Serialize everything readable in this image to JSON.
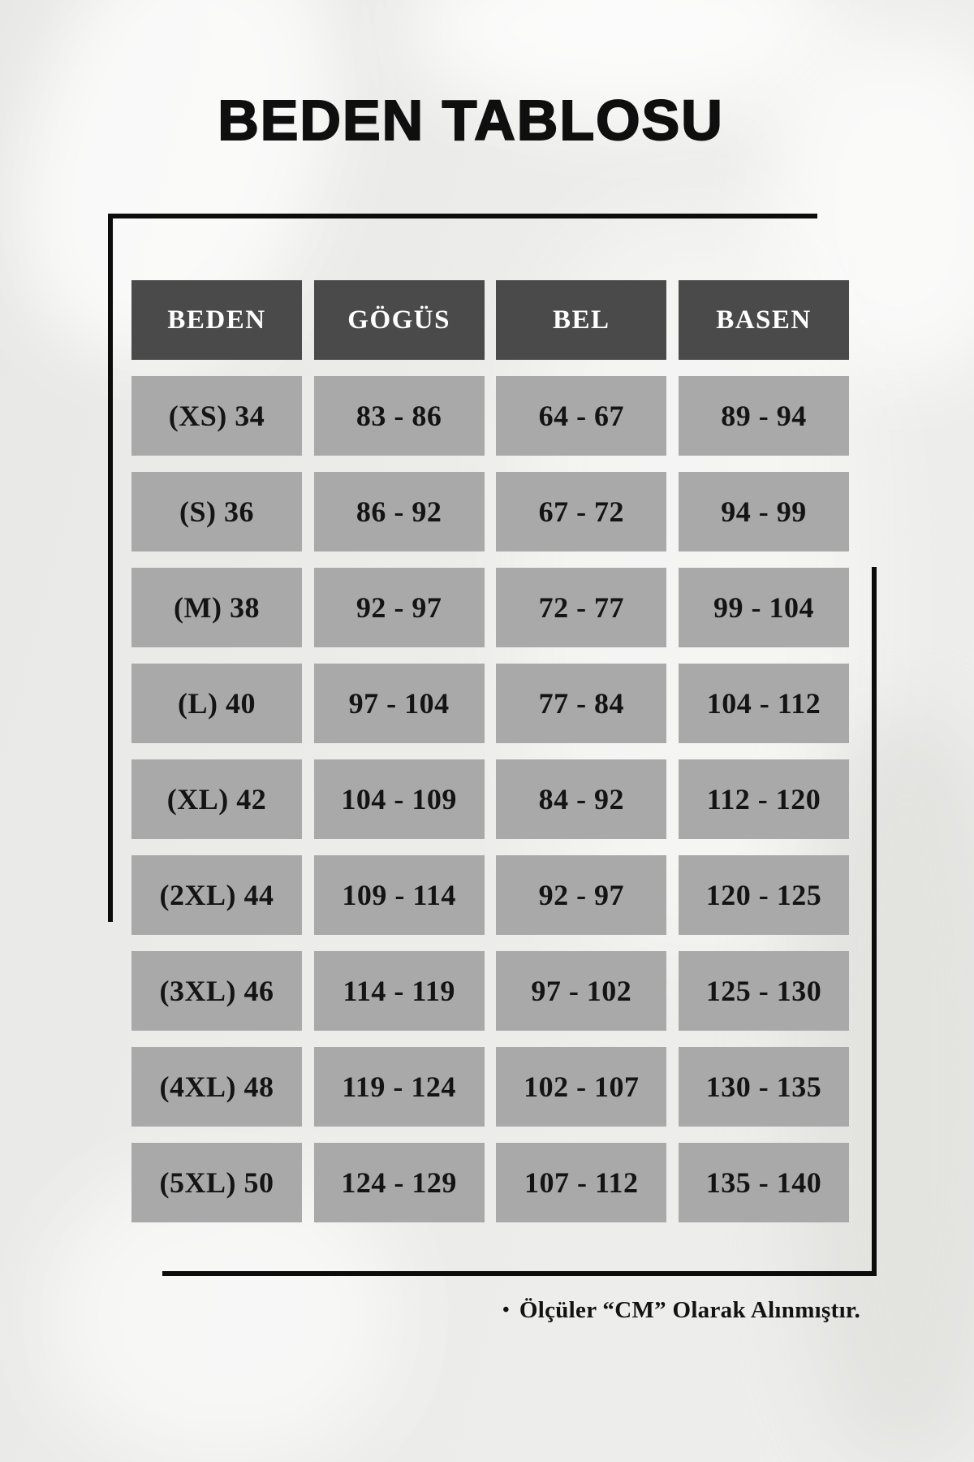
{
  "page": {
    "title": "BEDEN TABLOSU",
    "background_color": "#ececea",
    "line_color": "#0c0c0c"
  },
  "table": {
    "header_bg": "#4a4a4a",
    "header_text_color": "#ffffff",
    "cell_bg": "#a9a9a9",
    "cell_text_color": "#141414",
    "headers": [
      "BEDEN",
      "GÖGÜS",
      "BEL",
      "BASEN"
    ],
    "rows": [
      {
        "size": "(XS) 34",
        "chest": "83 - 86",
        "waist": "64 - 67",
        "hip": "89 - 94"
      },
      {
        "size": "(S) 36",
        "chest": "86 - 92",
        "waist": "67 - 72",
        "hip": "94 - 99"
      },
      {
        "size": "(M) 38",
        "chest": "92 - 97",
        "waist": "72 - 77",
        "hip": "99 - 104"
      },
      {
        "size": "(L) 40",
        "chest": "97 - 104",
        "waist": "77 - 84",
        "hip": "104 - 112"
      },
      {
        "size": "(XL) 42",
        "chest": "104 - 109",
        "waist": "84 - 92",
        "hip": "112 - 120"
      },
      {
        "size": "(2XL) 44",
        "chest": "109 - 114",
        "waist": "92 - 97",
        "hip": "120 - 125"
      },
      {
        "size": "(3XL) 46",
        "chest": "114 - 119",
        "waist": "97 - 102",
        "hip": "125 - 130"
      },
      {
        "size": "(4XL) 48",
        "chest": "119 - 124",
        "waist": "102 - 107",
        "hip": "130 - 135"
      },
      {
        "size": "(5XL) 50",
        "chest": "124 - 129",
        "waist": "107 - 112",
        "hip": "135 - 140"
      }
    ]
  },
  "footer": {
    "bullet": "•",
    "note": "Ölçüler “CM” Olarak Alınmıştır."
  },
  "chart_data": {
    "type": "table",
    "title": "BEDEN TABLOSU",
    "columns": [
      "BEDEN",
      "GÖGÜS",
      "BEL",
      "BASEN"
    ],
    "rows": [
      [
        "(XS) 34",
        "83 - 86",
        "64 - 67",
        "89 - 94"
      ],
      [
        "(S) 36",
        "86 - 92",
        "67 - 72",
        "94 - 99"
      ],
      [
        "(M) 38",
        "92 - 97",
        "72 - 77",
        "99 - 104"
      ],
      [
        "(L) 40",
        "97 - 104",
        "77 - 84",
        "104 - 112"
      ],
      [
        "(XL) 42",
        "104 - 109",
        "84 - 92",
        "112 - 120"
      ],
      [
        "(2XL) 44",
        "109 - 114",
        "92 - 97",
        "120 - 125"
      ],
      [
        "(3XL) 46",
        "114 - 119",
        "97 - 102",
        "125 - 130"
      ],
      [
        "(4XL) 48",
        "119 - 124",
        "102 - 107",
        "130 - 135"
      ],
      [
        "(5XL) 50",
        "124 - 129",
        "107 - 112",
        "135 - 140"
      ]
    ],
    "units": "CM",
    "note": "Ölçüler “CM” Olarak Alınmıştır."
  }
}
